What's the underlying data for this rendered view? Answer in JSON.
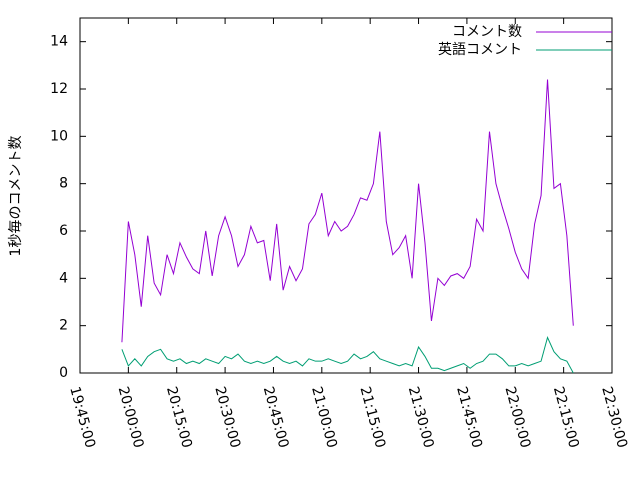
{
  "chart_data": {
    "type": "line",
    "y_label": "1秒毎のコメント数",
    "x": [
      "19:58:00",
      "20:00:00",
      "20:02:00",
      "20:04:00",
      "20:06:00",
      "20:08:00",
      "20:10:00",
      "20:12:00",
      "20:14:00",
      "20:16:00",
      "20:18:00",
      "20:20:00",
      "20:22:00",
      "20:24:00",
      "20:26:00",
      "20:28:00",
      "20:30:00",
      "20:32:00",
      "20:34:00",
      "20:36:00",
      "20:38:00",
      "20:40:00",
      "20:42:00",
      "20:44:00",
      "20:46:00",
      "20:48:00",
      "20:50:00",
      "20:52:00",
      "20:54:00",
      "20:56:00",
      "20:58:00",
      "21:00:00",
      "21:02:00",
      "21:04:00",
      "21:06:00",
      "21:08:00",
      "21:10:00",
      "21:12:00",
      "21:14:00",
      "21:16:00",
      "21:18:00",
      "21:20:00",
      "21:22:00",
      "21:24:00",
      "21:26:00",
      "21:28:00",
      "21:30:00",
      "21:32:00",
      "21:34:00",
      "21:36:00",
      "21:38:00",
      "21:40:00",
      "21:42:00",
      "21:44:00",
      "21:46:00",
      "21:48:00",
      "21:50:00",
      "21:52:00",
      "21:54:00",
      "21:56:00",
      "21:58:00",
      "22:00:00",
      "22:02:00",
      "22:04:00",
      "22:06:00",
      "22:08:00",
      "22:10:00",
      "22:12:00",
      "22:14:00",
      "22:16:00",
      "22:18:00"
    ],
    "series": [
      {
        "name": "コメント数",
        "color": "#9400d3",
        "values": [
          1.3,
          6.4,
          5.0,
          2.8,
          5.8,
          3.8,
          3.3,
          5.0,
          4.2,
          5.5,
          4.9,
          4.4,
          4.2,
          6.0,
          4.1,
          5.8,
          6.6,
          5.8,
          4.5,
          5.0,
          6.2,
          5.5,
          5.6,
          3.9,
          6.3,
          3.5,
          4.5,
          3.9,
          4.4,
          6.3,
          6.7,
          7.6,
          5.8,
          6.4,
          6.0,
          6.2,
          6.7,
          7.4,
          7.3,
          8.0,
          10.2,
          6.4,
          5.0,
          5.3,
          5.8,
          4.0,
          8.0,
          5.5,
          2.2,
          4.0,
          3.7,
          4.1,
          4.2,
          4.0,
          4.5,
          6.5,
          6.0,
          10.2,
          8.0,
          7.0,
          6.1,
          5.1,
          4.4,
          4.0,
          6.3,
          7.5,
          12.4,
          7.8,
          8.0,
          5.8,
          2.0
        ]
      },
      {
        "name": "英語コメント",
        "color": "#009e73",
        "values": [
          1.0,
          0.3,
          0.6,
          0.3,
          0.7,
          0.9,
          1.0,
          0.6,
          0.5,
          0.6,
          0.4,
          0.5,
          0.4,
          0.6,
          0.5,
          0.4,
          0.7,
          0.6,
          0.8,
          0.5,
          0.4,
          0.5,
          0.4,
          0.5,
          0.7,
          0.5,
          0.4,
          0.5,
          0.3,
          0.6,
          0.5,
          0.5,
          0.6,
          0.5,
          0.4,
          0.5,
          0.8,
          0.6,
          0.7,
          0.9,
          0.6,
          0.5,
          0.4,
          0.3,
          0.4,
          0.3,
          1.1,
          0.7,
          0.2,
          0.2,
          0.1,
          0.2,
          0.3,
          0.4,
          0.2,
          0.4,
          0.5,
          0.8,
          0.8,
          0.6,
          0.3,
          0.3,
          0.4,
          0.3,
          0.4,
          0.5,
          1.5,
          0.9,
          0.6,
          0.5,
          0.0
        ]
      }
    ],
    "xlim": [
      "19:45:00",
      "22:30:00"
    ],
    "xticks": [
      "19:45:00",
      "20:00:00",
      "20:15:00",
      "20:30:00",
      "20:45:00",
      "21:00:00",
      "21:15:00",
      "21:30:00",
      "21:45:00",
      "22:00:00",
      "22:15:00",
      "22:30:00"
    ],
    "ylim": [
      0,
      15
    ],
    "yticks": [
      0,
      2,
      4,
      6,
      8,
      10,
      12,
      14
    ],
    "legend": "top-right"
  }
}
